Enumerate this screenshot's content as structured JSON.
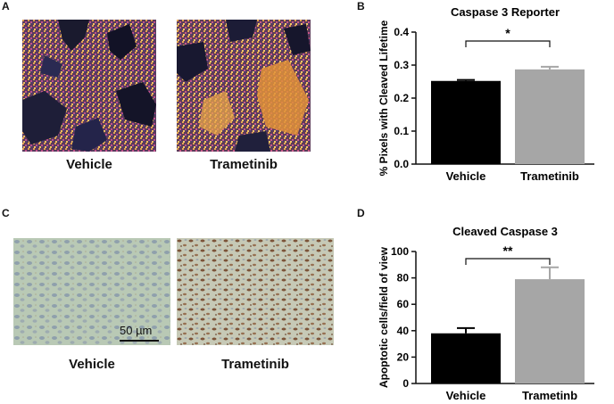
{
  "panels": {
    "a": {
      "letter": "A",
      "left_caption": "Vehicle",
      "right_caption": "Trametinib"
    },
    "b": {
      "letter": "B"
    },
    "c": {
      "letter": "C",
      "left_caption": "Vehicle",
      "right_caption": "Trametinib",
      "scale_label": "50 µm"
    },
    "d": {
      "letter": "D"
    }
  },
  "colors": {
    "vehicle_bar": "#000000",
    "trametinib_bar": "#a6a6a6"
  },
  "chart_data": [
    {
      "type": "bar",
      "title": "Caspase 3 Reporter",
      "ylabel": "% Pixels with Cleaved Lifetime",
      "xlabel": "",
      "categories": [
        "Vehicle",
        "Trametinib"
      ],
      "values": [
        0.252,
        0.287
      ],
      "errors": [
        0.003,
        0.008
      ],
      "ylim": [
        0.0,
        0.4
      ],
      "yticks": [
        "0.0",
        "0.1",
        "0.2",
        "0.3",
        "0.4"
      ],
      "significance": "*",
      "grid": false
    },
    {
      "type": "bar",
      "title": "Cleaved Caspase 3",
      "ylabel": "Apoptotic cells/field of view",
      "xlabel": "",
      "categories": [
        "Vehicle",
        "Trametinb"
      ],
      "values": [
        38,
        79
      ],
      "errors": [
        4,
        9
      ],
      "ylim": [
        0,
        100
      ],
      "yticks": [
        "0",
        "20",
        "40",
        "60",
        "80",
        "100"
      ],
      "significance": "**",
      "grid": false
    }
  ]
}
